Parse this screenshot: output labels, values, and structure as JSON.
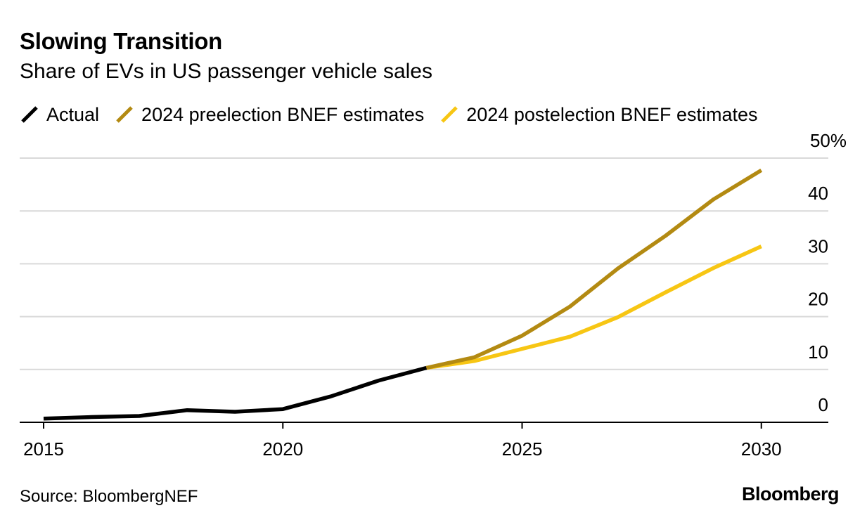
{
  "header": {
    "title": "Slowing Transition",
    "subtitle": "Share of EVs in US passenger vehicle sales"
  },
  "legend": [
    {
      "label": "Actual",
      "color": "#000000"
    },
    {
      "label": "2024 preelection BNEF estimates",
      "color": "#b38a12"
    },
    {
      "label": "2024 postelection BNEF estimates",
      "color": "#f7c614"
    }
  ],
  "footer": {
    "source": "Source: BloombergNEF",
    "brand": "Bloomberg"
  },
  "chart_data": {
    "type": "line",
    "title": "Slowing Transition",
    "subtitle": "Share of EVs in US passenger vehicle sales",
    "xlabel": "",
    "ylabel": "",
    "xlim": [
      2014.5,
      2031.4
    ],
    "ylim": [
      0,
      50
    ],
    "xticks": [
      2015,
      2020,
      2025,
      2030
    ],
    "xtick_labels": [
      "2015",
      "2020",
      "2025",
      "2030"
    ],
    "yticks": [
      0,
      10,
      20,
      30,
      40,
      50
    ],
    "ytick_labels": [
      "0",
      "10",
      "20",
      "30",
      "40",
      "50%"
    ],
    "y_axis_side": "right",
    "grid": true,
    "legend_position": "top-left",
    "series": [
      {
        "name": "Actual",
        "color": "#000000",
        "x": [
          2015,
          2016,
          2017,
          2018,
          2019,
          2020,
          2021,
          2022,
          2023
        ],
        "values": [
          0.7,
          1.0,
          1.2,
          2.3,
          2.0,
          2.5,
          4.9,
          7.9,
          10.3
        ]
      },
      {
        "name": "2024 preelection BNEF estimates",
        "color": "#b38a12",
        "x": [
          2023,
          2024,
          2025,
          2026,
          2027,
          2028,
          2029,
          2030
        ],
        "values": [
          10.3,
          12.3,
          16.4,
          21.9,
          29.1,
          35.3,
          42.2,
          47.7
        ]
      },
      {
        "name": "2024 postelection BNEF estimates",
        "color": "#f7c614",
        "x": [
          2023,
          2024,
          2025,
          2026,
          2027,
          2028,
          2029,
          2030
        ],
        "values": [
          10.3,
          11.6,
          13.9,
          16.2,
          19.9,
          24.6,
          29.2,
          33.3
        ]
      }
    ]
  }
}
